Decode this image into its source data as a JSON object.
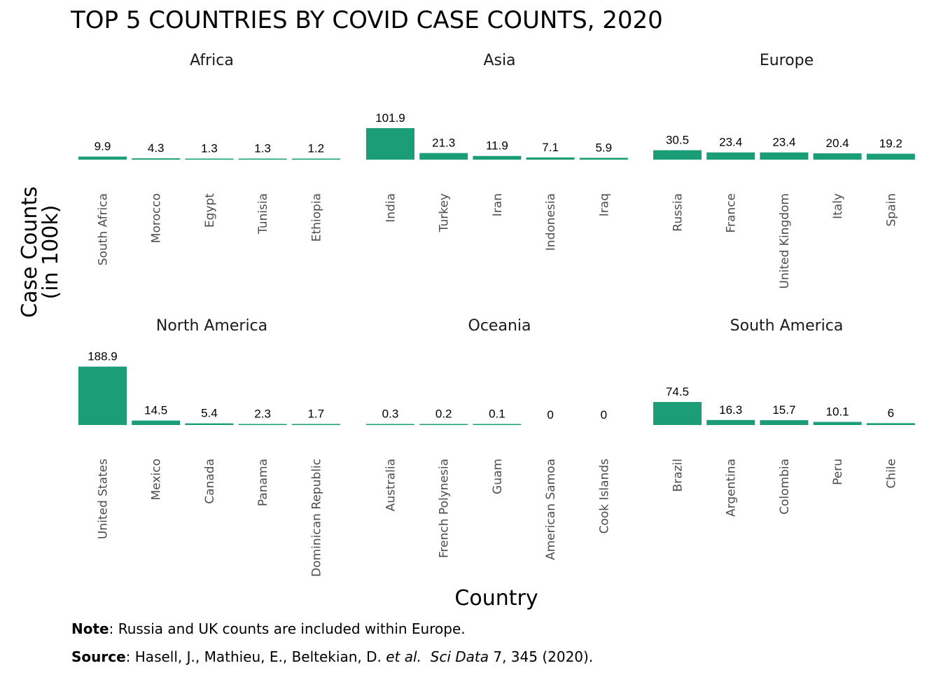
{
  "chart_data": {
    "type": "bar",
    "title": "TOP 5 COUNTRIES BY COVID CASE COUNTS, 2020",
    "xlabel": "Country",
    "ylabel": [
      "Case Counts",
      "(in 100k)"
    ],
    "bar_color": "#1b9e77",
    "ylim": [
      0,
      190
    ],
    "facets": [
      {
        "name": "Africa",
        "categories": [
          "South Africa",
          "Morocco",
          "Egypt",
          "Tunisia",
          "Ethiopia"
        ],
        "values": [
          9.9,
          4.3,
          1.3,
          1.3,
          1.2
        ]
      },
      {
        "name": "Asia",
        "categories": [
          "India",
          "Turkey",
          "Iran",
          "Indonesia",
          "Iraq"
        ],
        "values": [
          101.9,
          21.3,
          11.9,
          7.1,
          5.9
        ]
      },
      {
        "name": "Europe",
        "categories": [
          "Russia",
          "France",
          "United Kingdom",
          "Italy",
          "Spain"
        ],
        "values": [
          30.5,
          23.4,
          23.4,
          20.4,
          19.2
        ]
      },
      {
        "name": "North America",
        "categories": [
          "United States",
          "Mexico",
          "Canada",
          "Panama",
          "Dominican Republic"
        ],
        "values": [
          188.9,
          14.5,
          5.4,
          2.3,
          1.7
        ]
      },
      {
        "name": "Oceania",
        "categories": [
          "Australia",
          "French Polynesia",
          "Guam",
          "American Samoa",
          "Cook Islands"
        ],
        "values": [
          0.3,
          0.2,
          0.1,
          0,
          0
        ]
      },
      {
        "name": "South America",
        "categories": [
          "Brazil",
          "Argentina",
          "Colombia",
          "Peru",
          "Chile"
        ],
        "values": [
          74.5,
          16.3,
          15.7,
          10.1,
          6
        ]
      }
    ]
  },
  "notes": {
    "note_label": "Note",
    "note_text": ": Russia and UK counts are included within Europe.",
    "source_label": "Source",
    "source_authors": ": Hasell, J., Mathieu, E., Beltekian, D. ",
    "source_etal": "et al.",
    "source_journal": "Sci Data",
    "source_rest": " 7, 345 (2020)."
  }
}
